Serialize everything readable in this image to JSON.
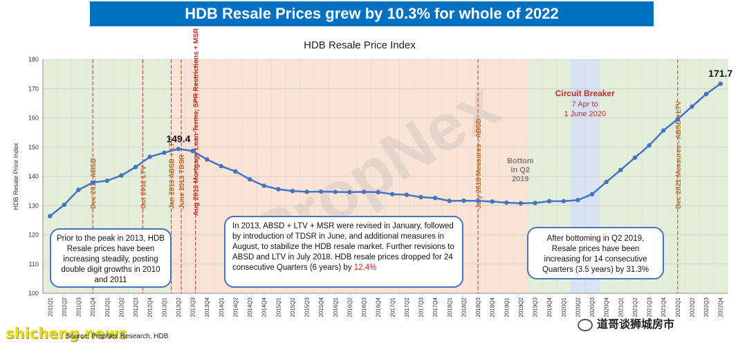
{
  "header": {
    "banner_title": "HDB Resale Prices grew by 10.3% for whole of 2022"
  },
  "chart_data": {
    "type": "line",
    "title": "HDB Resale Price Index",
    "ylabel": "HDB Resale Price Index",
    "xlabel": "",
    "ylim": [
      100,
      180
    ],
    "yticks": [
      100,
      110,
      120,
      130,
      140,
      150,
      160,
      170,
      180
    ],
    "grid": true,
    "watermark": "PropNex",
    "line_color": "#4472c4",
    "categories": [
      "2011Q1",
      "2011Q2",
      "2011Q3",
      "2011Q4",
      "2012Q1",
      "2012Q2",
      "2012Q3",
      "2012Q4",
      "2013Q1",
      "2013Q2",
      "2013Q3",
      "2013Q4",
      "2014Q1",
      "2014Q2",
      "2014Q3",
      "2014Q4",
      "2015Q1",
      "2015Q2",
      "2015Q3",
      "2015Q4",
      "2016Q1",
      "2016Q2",
      "2016Q3",
      "2016Q4",
      "2017Q1",
      "2017Q2",
      "2017Q3",
      "2017Q4",
      "2018Q1",
      "2018Q2",
      "2018Q3",
      "2018Q4",
      "2019Q1",
      "2019Q2",
      "2019Q3",
      "2019Q4",
      "2020Q1",
      "2020Q2",
      "2020Q3",
      "2020Q4",
      "2021Q1",
      "2021Q2",
      "2021Q3",
      "2021Q4",
      "2022Q1",
      "2022Q2",
      "2022Q3",
      "2022Q4"
    ],
    "values": [
      126.4,
      130.3,
      135.4,
      137.9,
      138.5,
      140.3,
      143.2,
      146.7,
      148.1,
      149.4,
      148.7,
      145.8,
      143.5,
      141.7,
      139.0,
      136.8,
      135.6,
      135.0,
      134.7,
      134.8,
      134.7,
      134.6,
      134.7,
      134.6,
      133.9,
      133.7,
      132.9,
      132.6,
      131.6,
      131.7,
      131.6,
      131.4,
      131.0,
      130.8,
      130.9,
      131.5,
      131.5,
      131.9,
      133.9,
      138.1,
      142.2,
      146.4,
      150.6,
      155.7,
      159.6,
      163.9,
      168.2,
      171.7
    ],
    "point_labels": [
      {
        "index": 9,
        "text": "149.4"
      },
      {
        "index": 47,
        "text": "171.7"
      }
    ],
    "shaded_regions": [
      {
        "from": 0,
        "to": 9,
        "color": "#e4efd9"
      },
      {
        "from": 9,
        "to": 34,
        "color": "#fbe3d5"
      },
      {
        "from": 34,
        "to": 47,
        "color": "#e4efd9"
      },
      {
        "from": 37,
        "to": 38,
        "color": "#d9e2f3"
      }
    ],
    "event_lines": [
      {
        "index": 3,
        "text": "Dec 2011 ABSD",
        "color": "#c06c2c"
      },
      {
        "index": 6.5,
        "text": "Oct 2012 LTV",
        "color": "#c06c2c"
      },
      {
        "index": 8.5,
        "text": "Jan 2013 ABSD + LTV",
        "color": "#c06c2c"
      },
      {
        "index": 9.2,
        "text": "June 2013 TDSR",
        "color": "#c06c2c"
      },
      {
        "index": 10.2,
        "text": "Aug 2013 Mortgage Loan Terms, SPR Restrictions + MSR",
        "color": "#c0302c"
      },
      {
        "index": 30,
        "text": "July 2018 Measures - ABSD",
        "color": "#c06c2c"
      },
      {
        "index": 44,
        "text": "Dec 2021 Measures - ABSD +LTV",
        "color": "#c06c2c"
      }
    ],
    "annotations": {
      "bottom_label": [
        "Bottom",
        "in Q2",
        "2019"
      ],
      "circuit_breaker_title": "Circuit Breaker",
      "circuit_breaker_dates": [
        "7 Apr to",
        "1 June 2020"
      ]
    }
  },
  "callouts": {
    "left": "Prior to the peak in 2013, HDB Resale prices have been increasing steadily, posting double digit growths in 2010 and 2011",
    "middle": "In 2013, ABSD + LTV + MSR were revised in January, followed by introduction of TDSR in June, and additional measures in August, to stabilize the HDB resale market. Further revisions to ABSD and LTV in July 2018. HDB resale prices dropped for 24 consecutive Quarters (6 years) by ",
    "middle_highlight": "12.4%",
    "right": "After bottoming in Q2 2019, Resale prices have been increasing for 14 consecutive Quarters (3.5 years) by 31.3%"
  },
  "footer": {
    "source": "Source: PropNex Research, HDB",
    "site_watermark": "shicheng.news",
    "wechat_account": "道哥谈狮城房市"
  }
}
